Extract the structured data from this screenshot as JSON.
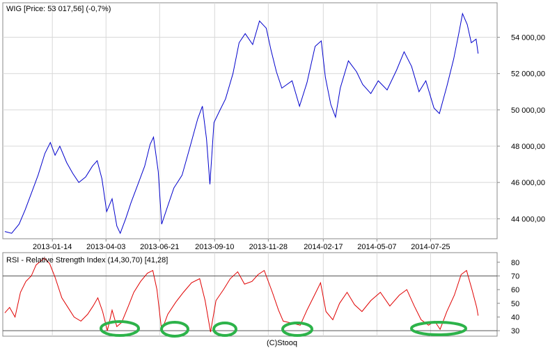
{
  "footer": "(C)Stooq",
  "colors": {
    "price_line": "#0000cc",
    "rsi_line": "#e00000",
    "grid": "#d8d8d8",
    "frame": "#888888",
    "rsi_level": "#555555",
    "marker": "#2db34a"
  },
  "chart_data": [
    {
      "type": "line",
      "title": "WIG [Price: 53 017,56] (-0,7%)",
      "x_tick_labels": [
        "2013-01-14",
        "2013-04-03",
        "2013-06-21",
        "2013-09-10",
        "2013-11-28",
        "2014-02-17",
        "2014-05-07",
        "2014-07-25"
      ],
      "y_ticks": [
        44000,
        46000,
        48000,
        50000,
        52000,
        54000
      ],
      "y_tick_labels": [
        "44 000,00",
        "46 000,00",
        "48 000,00",
        "50 000,00",
        "52 000,00",
        "54 000,00"
      ],
      "ylim": [
        42900,
        55900
      ],
      "xlim": [
        "2012-11-02",
        "2014-10-31"
      ],
      "grid": true,
      "y_axis_side": "right",
      "series": [
        {
          "values": [
            [
              "2012-11-05",
              43300
            ],
            [
              "2012-11-15",
              43200
            ],
            [
              "2012-11-26",
              43700
            ],
            [
              "2012-12-05",
              44500
            ],
            [
              "2012-12-14",
              45400
            ],
            [
              "2012-12-24",
              46400
            ],
            [
              "2013-01-03",
              47600
            ],
            [
              "2013-01-11",
              48200
            ],
            [
              "2013-01-18",
              47500
            ],
            [
              "2013-01-25",
              48000
            ],
            [
              "2013-02-04",
              47100
            ],
            [
              "2013-02-13",
              46500
            ],
            [
              "2013-02-22",
              46000
            ],
            [
              "2013-03-04",
              46300
            ],
            [
              "2013-03-14",
              46900
            ],
            [
              "2013-03-21",
              47200
            ],
            [
              "2013-03-28",
              46200
            ],
            [
              "2013-04-04",
              44400
            ],
            [
              "2013-04-12",
              45100
            ],
            [
              "2013-04-19",
              43600
            ],
            [
              "2013-04-24",
              43200
            ],
            [
              "2013-05-02",
              44000
            ],
            [
              "2013-05-10",
              44900
            ],
            [
              "2013-05-20",
              45900
            ],
            [
              "2013-05-30",
              46900
            ],
            [
              "2013-06-07",
              48100
            ],
            [
              "2013-06-12",
              48500
            ],
            [
              "2013-06-19",
              46600
            ],
            [
              "2013-06-24",
              43700
            ],
            [
              "2013-07-02",
              44600
            ],
            [
              "2013-07-12",
              45700
            ],
            [
              "2013-07-24",
              46400
            ],
            [
              "2013-08-05",
              48000
            ],
            [
              "2013-08-16",
              49500
            ],
            [
              "2013-08-23",
              50200
            ],
            [
              "2013-08-29",
              48400
            ],
            [
              "2013-09-03",
              45900
            ],
            [
              "2013-09-09",
              49300
            ],
            [
              "2013-09-18",
              50000
            ],
            [
              "2013-09-26",
              50600
            ],
            [
              "2013-10-07",
              52000
            ],
            [
              "2013-10-16",
              53700
            ],
            [
              "2013-10-25",
              54200
            ],
            [
              "2013-11-05",
              53600
            ],
            [
              "2013-11-15",
              54900
            ],
            [
              "2013-11-25",
              54500
            ],
            [
              "2013-12-02",
              53300
            ],
            [
              "2013-12-10",
              52100
            ],
            [
              "2013-12-18",
              51200
            ],
            [
              "2014-01-02",
              51600
            ],
            [
              "2014-01-13",
              50200
            ],
            [
              "2014-01-24",
              51500
            ],
            [
              "2014-02-05",
              53500
            ],
            [
              "2014-02-14",
              53800
            ],
            [
              "2014-02-20",
              51800
            ],
            [
              "2014-02-28",
              50300
            ],
            [
              "2014-03-07",
              49600
            ],
            [
              "2014-03-14",
              51200
            ],
            [
              "2014-03-26",
              52700
            ],
            [
              "2014-04-07",
              52100
            ],
            [
              "2014-04-16",
              51400
            ],
            [
              "2014-04-28",
              50900
            ],
            [
              "2014-05-09",
              51600
            ],
            [
              "2014-05-22",
              51100
            ],
            [
              "2014-06-05",
              52200
            ],
            [
              "2014-06-16",
              53200
            ],
            [
              "2014-06-27",
              52400
            ],
            [
              "2014-07-08",
              51000
            ],
            [
              "2014-07-18",
              51600
            ],
            [
              "2014-07-30",
              50100
            ],
            [
              "2014-08-07",
              49800
            ],
            [
              "2014-08-18",
              51300
            ],
            [
              "2014-08-28",
              52800
            ],
            [
              "2014-09-05",
              54300
            ],
            [
              "2014-09-10",
              55300
            ],
            [
              "2014-09-17",
              54700
            ],
            [
              "2014-09-23",
              53700
            ],
            [
              "2014-09-30",
              53900
            ],
            [
              "2014-10-03",
              53100
            ]
          ]
        }
      ]
    },
    {
      "type": "line",
      "title": "RSI - Relative Strength Index (14,30,70) [41,28]",
      "y_ticks": [
        30,
        40,
        50,
        60,
        70,
        80
      ],
      "y_tick_labels": [
        "30",
        "40",
        "50",
        "60",
        "70",
        "80"
      ],
      "ylim": [
        26,
        87
      ],
      "xlim": [
        "2012-11-02",
        "2014-10-31"
      ],
      "levels": [
        30,
        70
      ],
      "y_axis_side": "right",
      "series": [
        {
          "values": [
            [
              "2012-11-05",
              43
            ],
            [
              "2012-11-12",
              47
            ],
            [
              "2012-11-20",
              40
            ],
            [
              "2012-11-28",
              58
            ],
            [
              "2012-12-06",
              66
            ],
            [
              "2012-12-14",
              70
            ],
            [
              "2012-12-21",
              78
            ],
            [
              "2013-01-02",
              83
            ],
            [
              "2013-01-10",
              79
            ],
            [
              "2013-01-18",
              69
            ],
            [
              "2013-01-28",
              54
            ],
            [
              "2013-02-06",
              47
            ],
            [
              "2013-02-15",
              40
            ],
            [
              "2013-02-25",
              37
            ],
            [
              "2013-03-07",
              42
            ],
            [
              "2013-03-15",
              48
            ],
            [
              "2013-03-22",
              54
            ],
            [
              "2013-03-29",
              44
            ],
            [
              "2013-04-05",
              30
            ],
            [
              "2013-04-12",
              45
            ],
            [
              "2013-04-19",
              33
            ],
            [
              "2013-04-26",
              36
            ],
            [
              "2013-05-06",
              48
            ],
            [
              "2013-05-14",
              58
            ],
            [
              "2013-05-24",
              66
            ],
            [
              "2013-06-03",
              72
            ],
            [
              "2013-06-11",
              74
            ],
            [
              "2013-06-17",
              60
            ],
            [
              "2013-06-24",
              30
            ],
            [
              "2013-07-03",
              42
            ],
            [
              "2013-07-15",
              51
            ],
            [
              "2013-07-26",
              58
            ],
            [
              "2013-08-07",
              65
            ],
            [
              "2013-08-19",
              68
            ],
            [
              "2013-08-27",
              52
            ],
            [
              "2013-09-04",
              29
            ],
            [
              "2013-09-12",
              52
            ],
            [
              "2013-09-23",
              60
            ],
            [
              "2013-10-03",
              68
            ],
            [
              "2013-10-14",
              73
            ],
            [
              "2013-10-24",
              64
            ],
            [
              "2013-11-04",
              66
            ],
            [
              "2013-11-13",
              71
            ],
            [
              "2013-11-22",
              74
            ],
            [
              "2013-12-04",
              58
            ],
            [
              "2013-12-13",
              45
            ],
            [
              "2013-12-20",
              37
            ],
            [
              "2014-01-06",
              35
            ],
            [
              "2014-01-14",
              34
            ],
            [
              "2014-01-24",
              45
            ],
            [
              "2014-02-04",
              56
            ],
            [
              "2014-02-13",
              65
            ],
            [
              "2014-02-21",
              44
            ],
            [
              "2014-03-03",
              38
            ],
            [
              "2014-03-13",
              50
            ],
            [
              "2014-03-24",
              58
            ],
            [
              "2014-04-04",
              49
            ],
            [
              "2014-04-15",
              44
            ],
            [
              "2014-04-28",
              52
            ],
            [
              "2014-05-12",
              58
            ],
            [
              "2014-05-26",
              48
            ],
            [
              "2014-06-09",
              56
            ],
            [
              "2014-06-20",
              60
            ],
            [
              "2014-07-01",
              48
            ],
            [
              "2014-07-11",
              38
            ],
            [
              "2014-07-22",
              34
            ],
            [
              "2014-07-31",
              37
            ],
            [
              "2014-08-08",
              31
            ],
            [
              "2014-08-18",
              44
            ],
            [
              "2014-08-29",
              56
            ],
            [
              "2014-09-08",
              71
            ],
            [
              "2014-09-16",
              74
            ],
            [
              "2014-09-24",
              60
            ],
            [
              "2014-10-01",
              47
            ],
            [
              "2014-10-03",
              41
            ]
          ]
        }
      ]
    }
  ]
}
